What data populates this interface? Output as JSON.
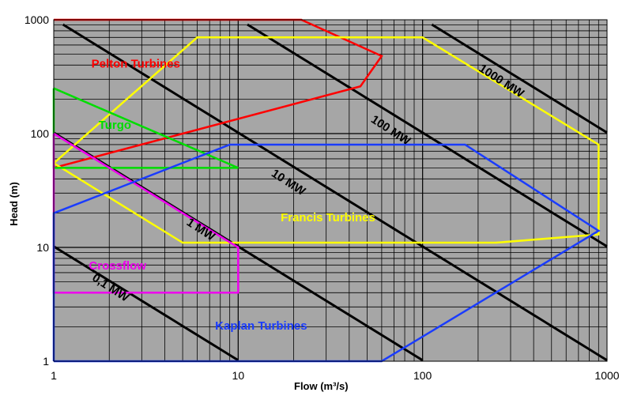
{
  "chart_data": {
    "type": "line",
    "title": "",
    "xlabel": "Flow (m³/s)",
    "ylabel": "Head (m)",
    "x_scale": "log",
    "y_scale": "log",
    "xlim": [
      1,
      1000
    ],
    "ylim": [
      1,
      1000
    ],
    "x_ticks": [
      "1",
      "10",
      "100",
      "1000"
    ],
    "y_ticks": [
      "1",
      "10",
      "100",
      "1000"
    ],
    "grid": true,
    "colors": {
      "background": "#a6a6a6",
      "grid": "#000000",
      "pelton": "#ff0000",
      "francis": "#ffff00",
      "turgo": "#00dd00",
      "crossflow": "#ee00ee",
      "kaplan": "#1a3cff",
      "power_lines": "#000000"
    },
    "regions": [
      {
        "name": "Pelton Turbines",
        "color": "#ff0000",
        "points": [
          [
            1,
            1000
          ],
          [
            22,
            1000
          ],
          [
            60,
            480
          ],
          [
            46,
            260
          ],
          [
            1,
            50
          ]
        ]
      },
      {
        "name": "Francis Turbines",
        "color": "#ffff00",
        "points": [
          [
            1,
            55
          ],
          [
            6,
            700
          ],
          [
            100,
            700
          ],
          [
            900,
            80
          ],
          [
            900,
            13
          ],
          [
            250,
            11
          ],
          [
            5,
            11
          ],
          [
            1,
            55
          ]
        ]
      },
      {
        "name": "Turgo",
        "color": "#00dd00",
        "points": [
          [
            1,
            250
          ],
          [
            10,
            50
          ],
          [
            1,
            50
          ],
          [
            1,
            250
          ]
        ]
      },
      {
        "name": "Crossflow",
        "color": "#ee00ee",
        "points": [
          [
            1,
            100
          ],
          [
            10,
            10
          ],
          [
            10,
            4
          ],
          [
            1,
            4
          ],
          [
            1,
            100
          ]
        ]
      },
      {
        "name": "Kaplan Turbines",
        "color": "#1a3cff",
        "points": [
          [
            1,
            1
          ],
          [
            1,
            20
          ],
          [
            9,
            80
          ],
          [
            170,
            80
          ],
          [
            900,
            14
          ],
          [
            60,
            1
          ],
          [
            1,
            1
          ]
        ]
      }
    ],
    "power_lines": [
      {
        "label": "0,1 MW",
        "p": 0.1
      },
      {
        "label": "1 MW",
        "p": 1
      },
      {
        "label": "10 MW",
        "p": 10
      },
      {
        "label": "100 MW",
        "p": 100
      },
      {
        "label": "1000 MW",
        "p": 1000
      }
    ],
    "annotations": [
      {
        "text": "Pelton Turbines",
        "x": 1.6,
        "y": 380,
        "color": "#ff0000",
        "rotate": 0
      },
      {
        "text": "Turgo",
        "x": 1.75,
        "y": 110,
        "color": "#00dd00",
        "rotate": 0
      },
      {
        "text": "Francis Turbines",
        "x": 17,
        "y": 17,
        "color": "#ffff00",
        "rotate": 0
      },
      {
        "text": "Crossflow",
        "x": 1.55,
        "y": 6.4,
        "color": "#ee00ee",
        "rotate": 0
      },
      {
        "text": "Kaplan Turbines",
        "x": 7.5,
        "y": 1.9,
        "color": "#1a3cff",
        "rotate": 0
      },
      {
        "text": "0,1 MW",
        "x": 1.6,
        "y": 5.2,
        "color": "#000000",
        "rotate": 33
      },
      {
        "text": "1 MW",
        "x": 5.2,
        "y": 16,
        "color": "#000000",
        "rotate": 33
      },
      {
        "text": "10 MW",
        "x": 15,
        "y": 43,
        "color": "#000000",
        "rotate": 33
      },
      {
        "text": "100 MW",
        "x": 52,
        "y": 128,
        "color": "#000000",
        "rotate": 33
      },
      {
        "text": "1000 MW",
        "x": 200,
        "y": 360,
        "color": "#000000",
        "rotate": 33
      }
    ]
  }
}
